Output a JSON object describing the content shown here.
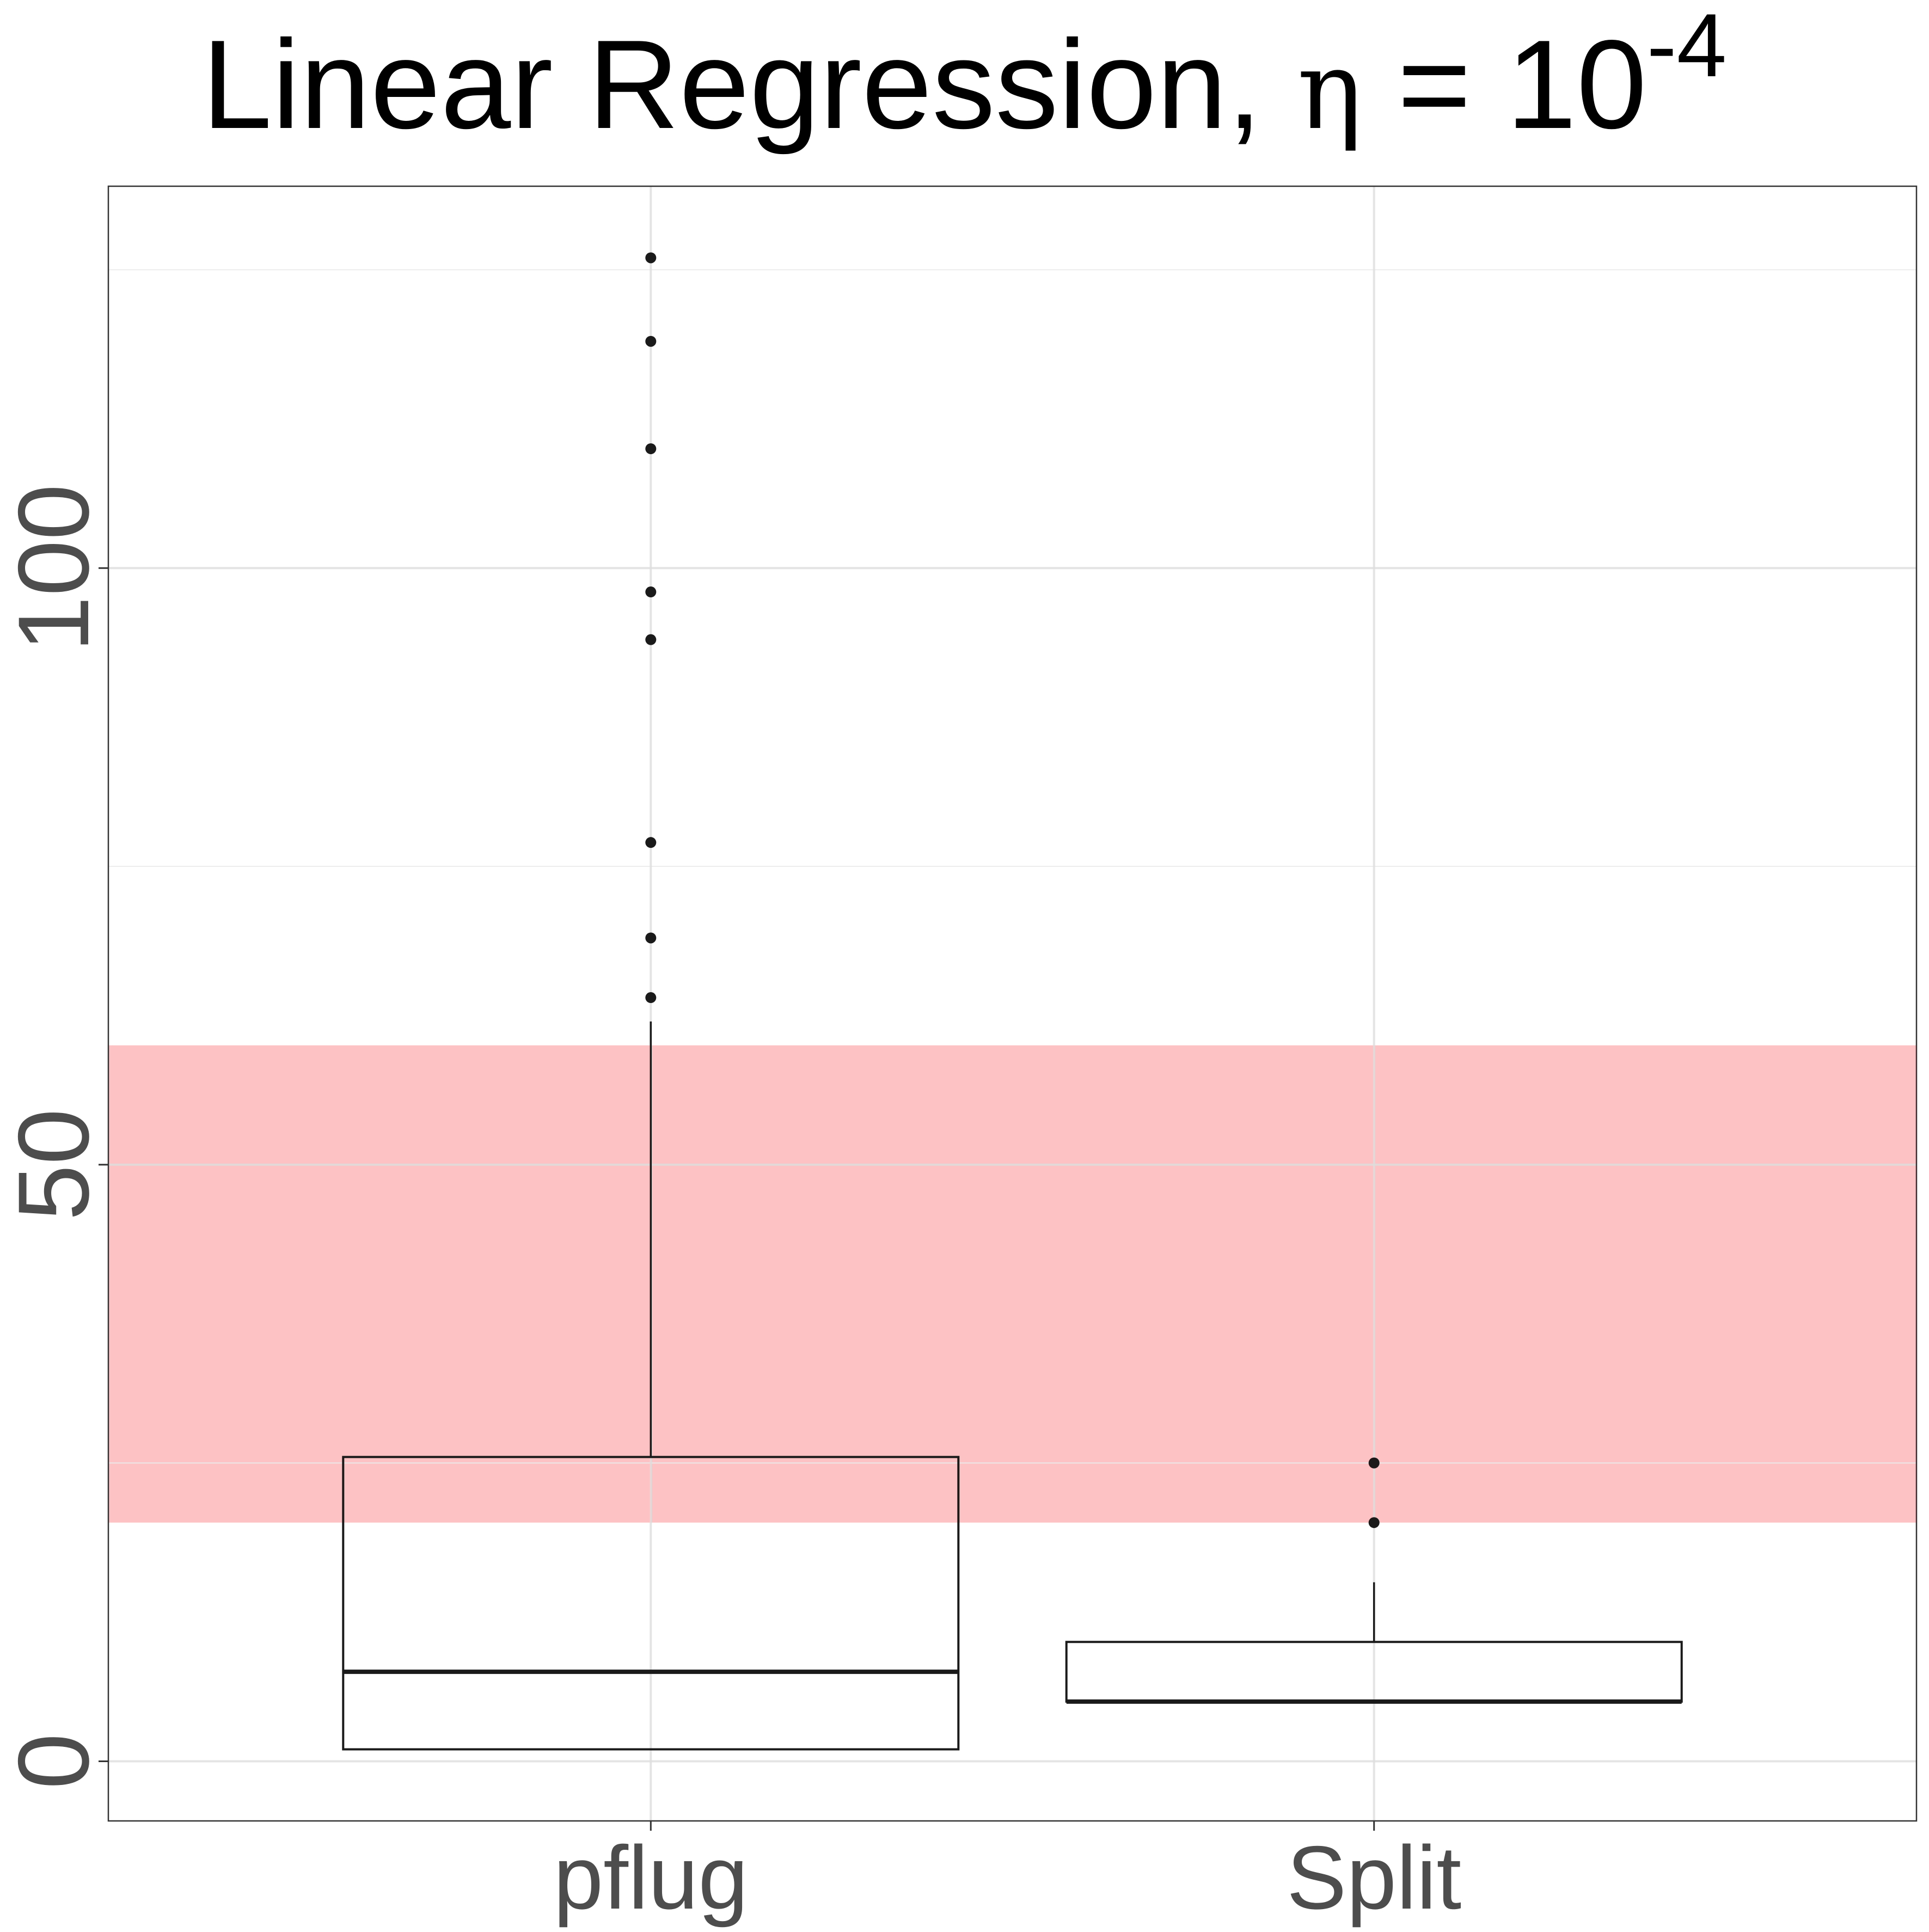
{
  "chart_data": {
    "type": "boxplot",
    "title": {
      "main": "Linear Regression, ",
      "symbol": "η",
      "equals": " = 10",
      "superscript": "-4"
    },
    "xlabel": "",
    "ylabel": "",
    "categories": [
      "pflug",
      "Split"
    ],
    "ylim": [
      -5,
      132
    ],
    "y_ticks": [
      0,
      50,
      100
    ],
    "y_minor_gridlines": [
      25,
      75,
      125
    ],
    "grid": true,
    "highlight_band": {
      "from": 20,
      "to": 60,
      "color": "#fcc2c4"
    },
    "boxes": [
      {
        "category": "pflug",
        "q1": 1,
        "median": 7.5,
        "q3": 25.5,
        "whisker_low": 1,
        "whisker_high": 62,
        "outliers": [
          64,
          69,
          77,
          94,
          98,
          110,
          119,
          126
        ]
      },
      {
        "category": "Split",
        "q1": 5,
        "median": 5,
        "q3": 10,
        "whisker_low": 5,
        "whisker_high": 15,
        "outliers": [
          20,
          25
        ]
      }
    ],
    "colors": {
      "box_line": "#1a1a1a",
      "outlier": "#1a1a1a",
      "grid": "#ebebeb",
      "panel_border": "#333333",
      "axis_text": "#4d4d4d",
      "title": "#000000"
    }
  }
}
